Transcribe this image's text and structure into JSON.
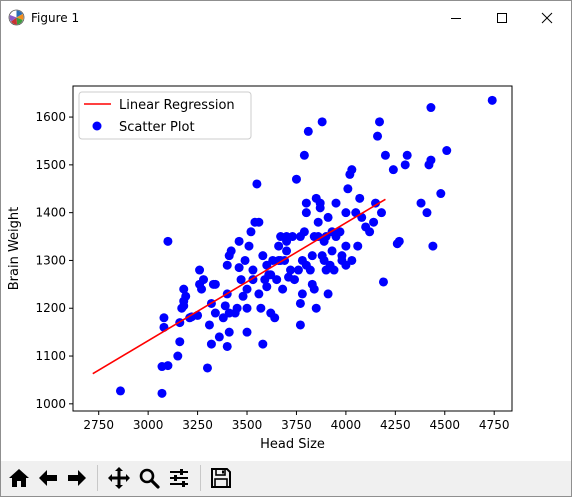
{
  "window": {
    "title": "Figure 1"
  },
  "toolbar": {
    "buttons": [
      {
        "name": "home-icon",
        "tooltip": "Reset original view"
      },
      {
        "name": "back-arrow-icon",
        "tooltip": "Back"
      },
      {
        "name": "forward-arrow-icon",
        "tooltip": "Forward"
      },
      {
        "name": "pan-icon",
        "tooltip": "Pan"
      },
      {
        "name": "zoom-icon",
        "tooltip": "Zoom"
      },
      {
        "name": "configure-subplots-icon",
        "tooltip": "Configure subplots"
      },
      {
        "name": "save-icon",
        "tooltip": "Save"
      }
    ]
  },
  "chart_data": {
    "type": "scatter",
    "xlabel": "Head Size",
    "ylabel": "Brain Weight",
    "xlim": [
      2620,
      4840
    ],
    "ylim": [
      985,
      1665
    ],
    "xticks": [
      2750,
      3000,
      3250,
      3500,
      3750,
      4000,
      4250,
      4500,
      4750
    ],
    "yticks": [
      1000,
      1100,
      1200,
      1300,
      1400,
      1500,
      1600
    ],
    "grid": false,
    "legend": {
      "placement": "top-left",
      "entries": [
        {
          "label": "Linear Regression",
          "kind": "line",
          "color": "#ff0000"
        },
        {
          "label": "Scatter Plot",
          "kind": "marker",
          "color": "#0000ff"
        }
      ]
    },
    "series": [
      {
        "name": "Scatter Plot",
        "kind": "scatter",
        "color": "#0000ff",
        "points": [
          [
            2860,
            1027
          ],
          [
            3070,
            1022
          ],
          [
            3070,
            1078
          ],
          [
            3100,
            1080
          ],
          [
            3080,
            1160
          ],
          [
            3080,
            1180
          ],
          [
            3100,
            1340
          ],
          [
            3150,
            1100
          ],
          [
            3160,
            1130
          ],
          [
            3160,
            1170
          ],
          [
            3170,
            1200
          ],
          [
            3180,
            1205
          ],
          [
            3180,
            1215
          ],
          [
            3190,
            1225
          ],
          [
            3180,
            1240
          ],
          [
            3210,
            1180
          ],
          [
            3220,
            1182
          ],
          [
            3250,
            1185
          ],
          [
            3260,
            1250
          ],
          [
            3270,
            1240
          ],
          [
            3260,
            1280
          ],
          [
            3280,
            1260
          ],
          [
            3300,
            1075
          ],
          [
            3320,
            1125
          ],
          [
            3310,
            1165
          ],
          [
            3320,
            1210
          ],
          [
            3330,
            1250
          ],
          [
            3340,
            1250
          ],
          [
            3340,
            1190
          ],
          [
            3360,
            1140
          ],
          [
            3380,
            1180
          ],
          [
            3390,
            1205
          ],
          [
            3400,
            1120
          ],
          [
            3410,
            1150
          ],
          [
            3410,
            1190
          ],
          [
            3400,
            1230
          ],
          [
            3400,
            1290
          ],
          [
            3410,
            1310
          ],
          [
            3420,
            1320
          ],
          [
            3440,
            1190
          ],
          [
            3450,
            1200
          ],
          [
            3460,
            1340
          ],
          [
            3460,
            1285
          ],
          [
            3470,
            1260
          ],
          [
            3480,
            1225
          ],
          [
            3490,
            1300
          ],
          [
            3500,
            1150
          ],
          [
            3500,
            1200
          ],
          [
            3500,
            1240
          ],
          [
            3510,
            1330
          ],
          [
            3520,
            1360
          ],
          [
            3530,
            1280
          ],
          [
            3530,
            1260
          ],
          [
            3540,
            1380
          ],
          [
            3550,
            1460
          ],
          [
            3560,
            1380
          ],
          [
            3560,
            1230
          ],
          [
            3570,
            1200
          ],
          [
            3580,
            1310
          ],
          [
            3580,
            1125
          ],
          [
            3590,
            1260
          ],
          [
            3600,
            1290
          ],
          [
            3600,
            1245
          ],
          [
            3610,
            1270
          ],
          [
            3620,
            1270
          ],
          [
            3620,
            1190
          ],
          [
            3630,
            1300
          ],
          [
            3640,
            1180
          ],
          [
            3650,
            1260
          ],
          [
            3660,
            1330
          ],
          [
            3660,
            1300
          ],
          [
            3670,
            1350
          ],
          [
            3670,
            1300
          ],
          [
            3680,
            1240
          ],
          [
            3690,
            1300
          ],
          [
            3700,
            1350
          ],
          [
            3700,
            1320
          ],
          [
            3700,
            1340
          ],
          [
            3710,
            1265
          ],
          [
            3720,
            1280
          ],
          [
            3730,
            1350
          ],
          [
            3740,
            1260
          ],
          [
            3750,
            1470
          ],
          [
            3760,
            1280
          ],
          [
            3770,
            1165
          ],
          [
            3770,
            1210
          ],
          [
            3770,
            1350
          ],
          [
            3780,
            1230
          ],
          [
            3780,
            1300
          ],
          [
            3790,
            1360
          ],
          [
            3790,
            1520
          ],
          [
            3800,
            1290
          ],
          [
            3800,
            1400
          ],
          [
            3800,
            1420
          ],
          [
            3810,
            1570
          ],
          [
            3820,
            1280
          ],
          [
            3830,
            1250
          ],
          [
            3830,
            1310
          ],
          [
            3840,
            1240
          ],
          [
            3840,
            1350
          ],
          [
            3850,
            1430
          ],
          [
            3850,
            1200
          ],
          [
            3860,
            1350
          ],
          [
            3860,
            1380
          ],
          [
            3870,
            1410
          ],
          [
            3870,
            1420
          ],
          [
            3880,
            1590
          ],
          [
            3880,
            1310
          ],
          [
            3890,
            1300
          ],
          [
            3890,
            1340
          ],
          [
            3900,
            1350
          ],
          [
            3900,
            1280
          ],
          [
            3910,
            1390
          ],
          [
            3910,
            1230
          ],
          [
            3920,
            1290
          ],
          [
            3930,
            1320
          ],
          [
            3930,
            1360
          ],
          [
            3940,
            1280
          ],
          [
            3950,
            1350
          ],
          [
            3950,
            1420
          ],
          [
            3970,
            1360
          ],
          [
            3980,
            1300
          ],
          [
            3980,
            1310
          ],
          [
            4000,
            1330
          ],
          [
            4000,
            1290
          ],
          [
            4000,
            1400
          ],
          [
            4010,
            1450
          ],
          [
            4020,
            1480
          ],
          [
            4030,
            1490
          ],
          [
            4030,
            1300
          ],
          [
            4050,
            1400
          ],
          [
            4060,
            1330
          ],
          [
            4070,
            1430
          ],
          [
            4080,
            1390
          ],
          [
            4100,
            1370
          ],
          [
            4120,
            1360
          ],
          [
            4140,
            1380
          ],
          [
            4150,
            1420
          ],
          [
            4160,
            1560
          ],
          [
            4170,
            1590
          ],
          [
            4180,
            1400
          ],
          [
            4190,
            1255
          ],
          [
            4200,
            1520
          ],
          [
            4240,
            1490
          ],
          [
            4260,
            1335
          ],
          [
            4270,
            1340
          ],
          [
            4300,
            1500
          ],
          [
            4310,
            1520
          ],
          [
            4380,
            1420
          ],
          [
            4410,
            1400
          ],
          [
            4420,
            1500
          ],
          [
            4430,
            1510
          ],
          [
            4430,
            1620
          ],
          [
            4440,
            1330
          ],
          [
            4480,
            1440
          ],
          [
            4510,
            1530
          ],
          [
            4740,
            1635
          ]
        ]
      },
      {
        "name": "Linear Regression",
        "kind": "line",
        "color": "#ff0000",
        "points": [
          [
            2720,
            1063
          ],
          [
            4200,
            1428
          ]
        ]
      }
    ]
  }
}
